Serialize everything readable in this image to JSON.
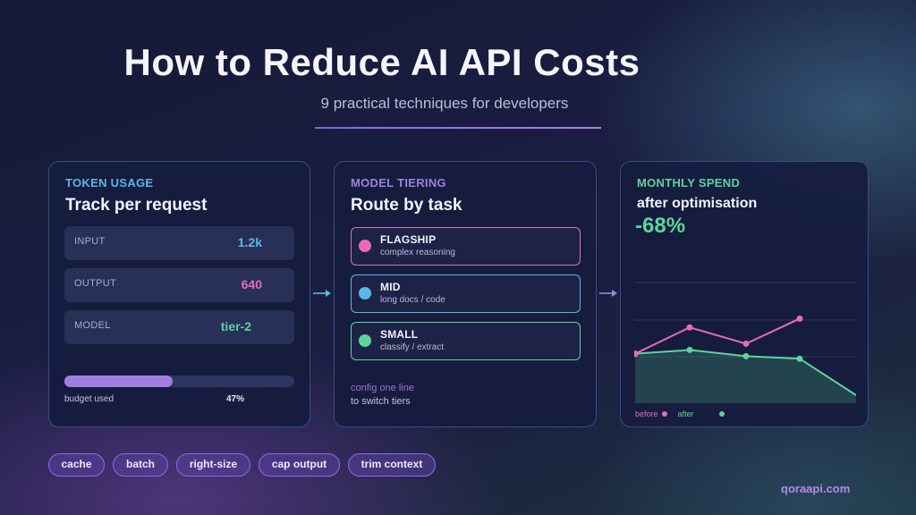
{
  "header": {
    "title": "How to Reduce AI API Costs",
    "subtitle": "9 practical techniques for developers"
  },
  "token_card": {
    "eyebrow": "TOKEN USAGE",
    "heading": "Track per request",
    "metrics": [
      {
        "label": "INPUT",
        "value": "1.2k",
        "color": "#58b8e6"
      },
      {
        "label": "OUTPUT",
        "value": "640",
        "color": "#e86bb8"
      },
      {
        "label": "MODEL",
        "value": "tier-2",
        "color": "#5cd49c"
      }
    ],
    "budget": {
      "label": "budget used",
      "percent_text": "47%",
      "fraction": 0.47
    }
  },
  "tier_card": {
    "eyebrow": "MODEL TIERING",
    "heading": "Route by task",
    "tiers": [
      {
        "name": "FLAGSHIP",
        "desc": "complex reasoning",
        "color": "#e86bb8"
      },
      {
        "name": "MID",
        "desc": "long docs / code",
        "color": "#58b8e6"
      },
      {
        "name": "SMALL",
        "desc": "classify / extract",
        "color": "#5cd49c"
      }
    ],
    "note_line1": "config one line",
    "note_line2": "to switch tiers"
  },
  "spend_card": {
    "eyebrow": "MONTHLY SPEND",
    "heading": "after optimisation",
    "big_value": "-68%",
    "legend_before": "before",
    "legend_after": "after"
  },
  "chart_data": {
    "type": "line",
    "title": "",
    "xlabel": "",
    "ylabel": "",
    "ylim": [
      0,
      5
    ],
    "x": [
      1,
      2,
      3,
      4
    ],
    "series": [
      {
        "name": "before",
        "values": [
          1.8,
          2.85,
          2.2,
          3.2
        ],
        "color": "#e86bb8"
      },
      {
        "name": "after",
        "values": [
          1.8,
          1.95,
          1.7,
          1.6
        ],
        "color": "#5cd49c"
      }
    ],
    "grid": true,
    "legend_position": "bottom-left"
  },
  "chips": [
    "cache",
    "batch",
    "right-size",
    "cap output",
    "trim context"
  ],
  "brand": "qoraapi.com",
  "colors": {
    "accent_purple": "#a07fe0",
    "pink": "#e86bb8",
    "blue": "#58b8e6",
    "green": "#5cd49c"
  }
}
